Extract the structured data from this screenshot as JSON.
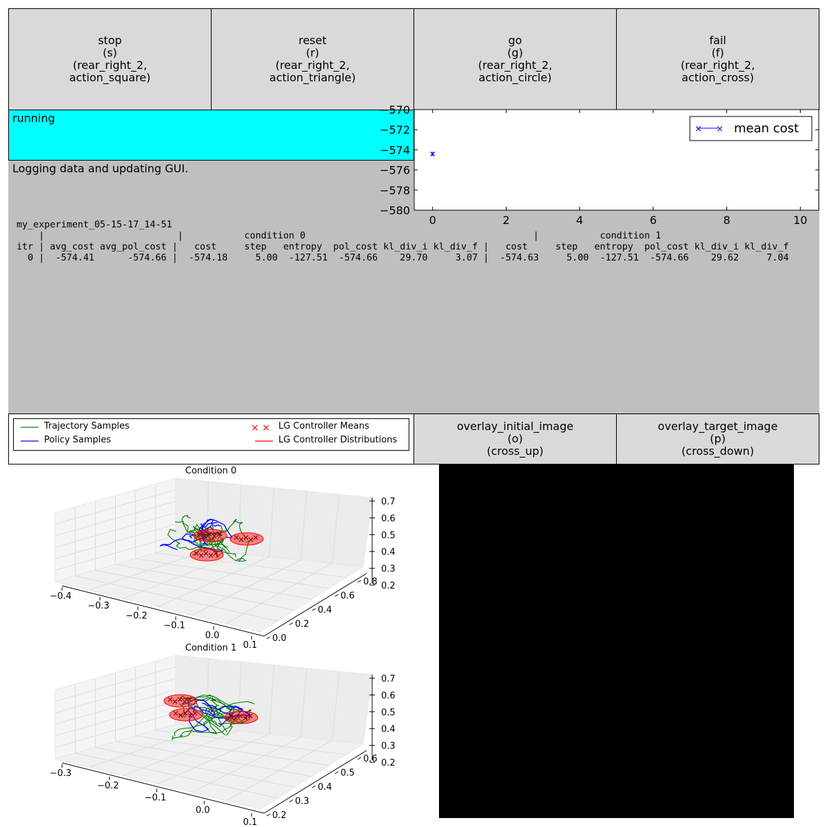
{
  "action_buttons": [
    {
      "label": "stop\n(s)\n(rear_right_2,\naction_square)"
    },
    {
      "label": "reset\n(r)\n(rear_right_2,\naction_triangle)"
    },
    {
      "label": "go\n(g)\n(rear_right_2,\naction_circle)"
    },
    {
      "label": "fail\n(f)\n(rear_right_2,\naction_cross)"
    }
  ],
  "status": {
    "text": "running",
    "color": "#00ffff"
  },
  "output": {
    "text": "Logging data and updating GUI."
  },
  "log": {
    "experiment": "my_experiment_05-15-17_14-51",
    "lines": [
      "    |                        |           condition 0                                         |           condition 1",
      "itr | avg_cost avg_pol_cost |   cost     step   entropy  pol_cost kl_div_i kl_div_f |   cost     step   entropy  pol_cost kl_div_i kl_div_f",
      "  0 |  -574.41      -574.66 |  -574.18     5.00  -127.51  -574.66    29.70     3.07 |  -574.63     5.00  -127.51  -574.66    29.62     7.04"
    ]
  },
  "cost_chart": {
    "chart_data": {
      "type": "scatter",
      "series": [
        {
          "name": "mean cost",
          "x": [
            0
          ],
          "y": [
            -574.41
          ],
          "yerr": [
            0.22
          ],
          "color": "#0000ff",
          "marker": "x"
        }
      ],
      "xlim": [
        -0.5,
        10.5
      ],
      "ylim": [
        -580,
        -570
      ],
      "xticks": [
        0,
        2,
        4,
        6,
        8,
        10
      ],
      "yticks": [
        -570,
        -572,
        -574,
        -576,
        -578,
        -580
      ],
      "xtick_labels": [
        "0",
        "2",
        "4",
        "6",
        "8",
        "10"
      ],
      "ytick_labels": [
        "−570",
        "−572",
        "−574",
        "−576",
        "−578",
        "−580"
      ],
      "legend": "top-right",
      "grid": false
    }
  },
  "legend": {
    "items": [
      {
        "label": "Trajectory Samples",
        "color": "#008000",
        "style": "line"
      },
      {
        "label": "Policy Samples",
        "color": "#0000ff",
        "style": "line"
      },
      {
        "label": "LG Controller Means",
        "color": "#ff0000",
        "style": "x"
      },
      {
        "label": "LG Controller Distributions",
        "color": "#ff0000",
        "style": "line"
      }
    ]
  },
  "overlay_buttons": [
    {
      "label": "overlay_initial_image\n(o)\n(cross_up)"
    },
    {
      "label": "overlay_target_image\n(p)\n(cross_down)"
    }
  ],
  "plots3d": [
    {
      "title": "Condition 0",
      "x_ticks": [
        "−0.4",
        "−0.3",
        "−0.2",
        "−0.1",
        "0.0",
        "0.1"
      ],
      "y_ticks": [
        "0.0",
        "0.2",
        "0.4",
        "0.6",
        "0.8"
      ],
      "z_ticks": [
        "0.7",
        "0.6",
        "0.5",
        "0.4",
        "0.3",
        "0.2"
      ]
    },
    {
      "title": "Condition 1",
      "x_ticks": [
        "−0.3",
        "−0.2",
        "−0.1",
        "0.0",
        "0.1"
      ],
      "y_ticks": [
        "0.2",
        "0.3",
        "0.4",
        "0.5",
        "0.6"
      ],
      "z_ticks": [
        "0.7",
        "0.6",
        "0.5",
        "0.4",
        "0.3",
        "0.2"
      ]
    }
  ]
}
